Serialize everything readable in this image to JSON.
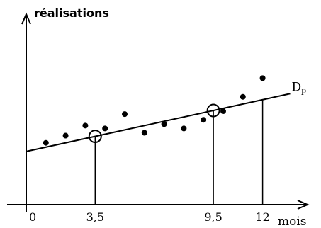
{
  "chart_data": {
    "type": "scatter",
    "title": "",
    "ylabel": "réalisations",
    "xlabel": "mois",
    "xlim": [
      0,
      13.5
    ],
    "x_ticks": [
      {
        "value": 0,
        "label": "0"
      },
      {
        "value": 3.5,
        "label": "3,5"
      },
      {
        "value": 9.5,
        "label": "9,5"
      },
      {
        "value": 12,
        "label": "12"
      }
    ],
    "points": [
      {
        "x": 1,
        "y": 4.3
      },
      {
        "x": 2,
        "y": 4.8
      },
      {
        "x": 3,
        "y": 5.5
      },
      {
        "x": 4,
        "y": 5.3
      },
      {
        "x": 5,
        "y": 6.3
      },
      {
        "x": 6,
        "y": 5.0
      },
      {
        "x": 7,
        "y": 5.6
      },
      {
        "x": 8,
        "y": 5.3
      },
      {
        "x": 9,
        "y": 5.9
      },
      {
        "x": 10,
        "y": 6.5
      },
      {
        "x": 11,
        "y": 7.5
      },
      {
        "x": 12,
        "y": 8.8
      }
    ],
    "line": {
      "name_main": "D",
      "name_sub": "p",
      "intercept": 3.7,
      "slope": 0.3
    },
    "highlighted_points": [
      {
        "x": 3.5,
        "y": 4.75
      },
      {
        "x": 9.5,
        "y": 6.55
      }
    ],
    "vertical_markers": [
      3.5,
      9.5,
      12
    ],
    "grid": false
  }
}
